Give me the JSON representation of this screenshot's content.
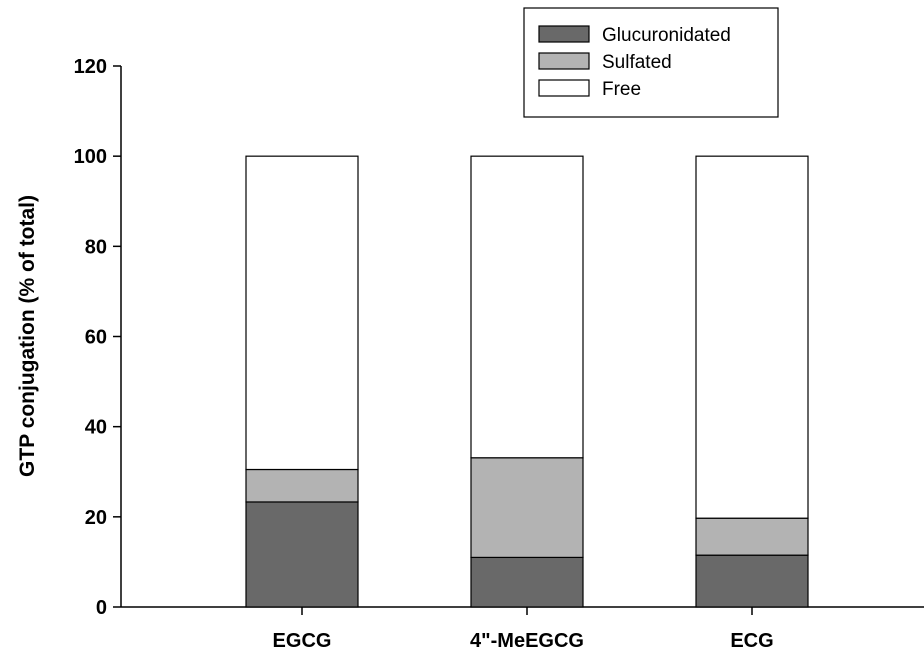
{
  "chart_data": {
    "type": "bar",
    "stacked": true,
    "title": "",
    "xlabel": "",
    "ylabel": "GTP conjugation (% of total)",
    "ylim": [
      0,
      120
    ],
    "yticks": [
      0,
      20,
      40,
      60,
      80,
      100,
      120
    ],
    "grid": false,
    "legend_position": "top-right",
    "categories": [
      "EGCG",
      "4\"-MeEGCG",
      "ECG"
    ],
    "series": [
      {
        "name": "Glucuronidated",
        "color": "#696969",
        "values": [
          23.3,
          11,
          11.5
        ]
      },
      {
        "name": "Sulfated",
        "color": "#b3b3b3",
        "values": [
          7.2,
          22.1,
          8.2
        ]
      },
      {
        "name": "Free",
        "color": "#ffffff",
        "values": [
          69.5,
          66.9,
          80.3
        ]
      }
    ]
  }
}
